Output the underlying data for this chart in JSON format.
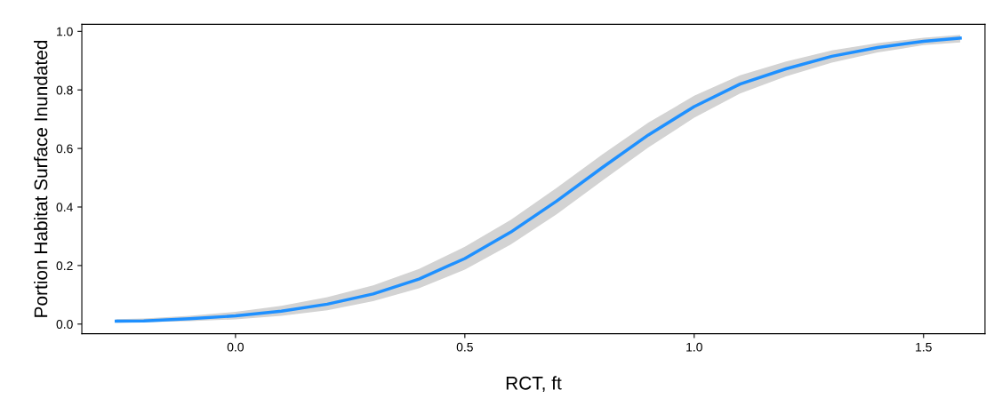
{
  "chart_data": {
    "type": "line",
    "xlabel": "RCT, ft",
    "ylabel": "Portion Habitat Surface Inundated",
    "x": [
      -0.26,
      -0.2,
      -0.1,
      0,
      0.1,
      0.2,
      0.3,
      0.4,
      0.5,
      0.6,
      0.7,
      0.8,
      0.9,
      1.0,
      1.1,
      1.2,
      1.3,
      1.4,
      1.5,
      1.58
    ],
    "series": [
      {
        "color": "#1e90ff",
        "values": [
          0.01,
          0.011,
          0.018,
          0.028,
          0.044,
          0.068,
          0.103,
          0.154,
          0.224,
          0.314,
          0.42,
          0.535,
          0.646,
          0.743,
          0.82,
          0.872,
          0.915,
          0.945,
          0.966,
          0.977
        ],
        "lower": [
          0.005,
          0.006,
          0.01,
          0.016,
          0.028,
          0.047,
          0.078,
          0.122,
          0.186,
          0.272,
          0.375,
          0.49,
          0.603,
          0.705,
          0.788,
          0.846,
          0.893,
          0.928,
          0.953,
          0.962
        ],
        "upper": [
          0.017,
          0.019,
          0.028,
          0.042,
          0.062,
          0.092,
          0.132,
          0.188,
          0.264,
          0.356,
          0.465,
          0.58,
          0.688,
          0.78,
          0.85,
          0.897,
          0.935,
          0.96,
          0.978,
          0.988
        ]
      }
    ],
    "xlim": [
      -0.335,
      1.634
    ],
    "ylim": [
      -0.033,
      1.024
    ],
    "xticks": [
      {
        "value": 0,
        "label": "0.0"
      },
      0.5,
      {
        "value": 1,
        "label": "1.0"
      },
      1.5
    ],
    "yticks": [
      {
        "value": 0,
        "label": "0.0"
      },
      0.2,
      0.4,
      0.6,
      0.8,
      {
        "value": 1,
        "label": "1.0"
      }
    ],
    "grid": false,
    "legend": false,
    "marker": "none",
    "line_style": "solid"
  }
}
